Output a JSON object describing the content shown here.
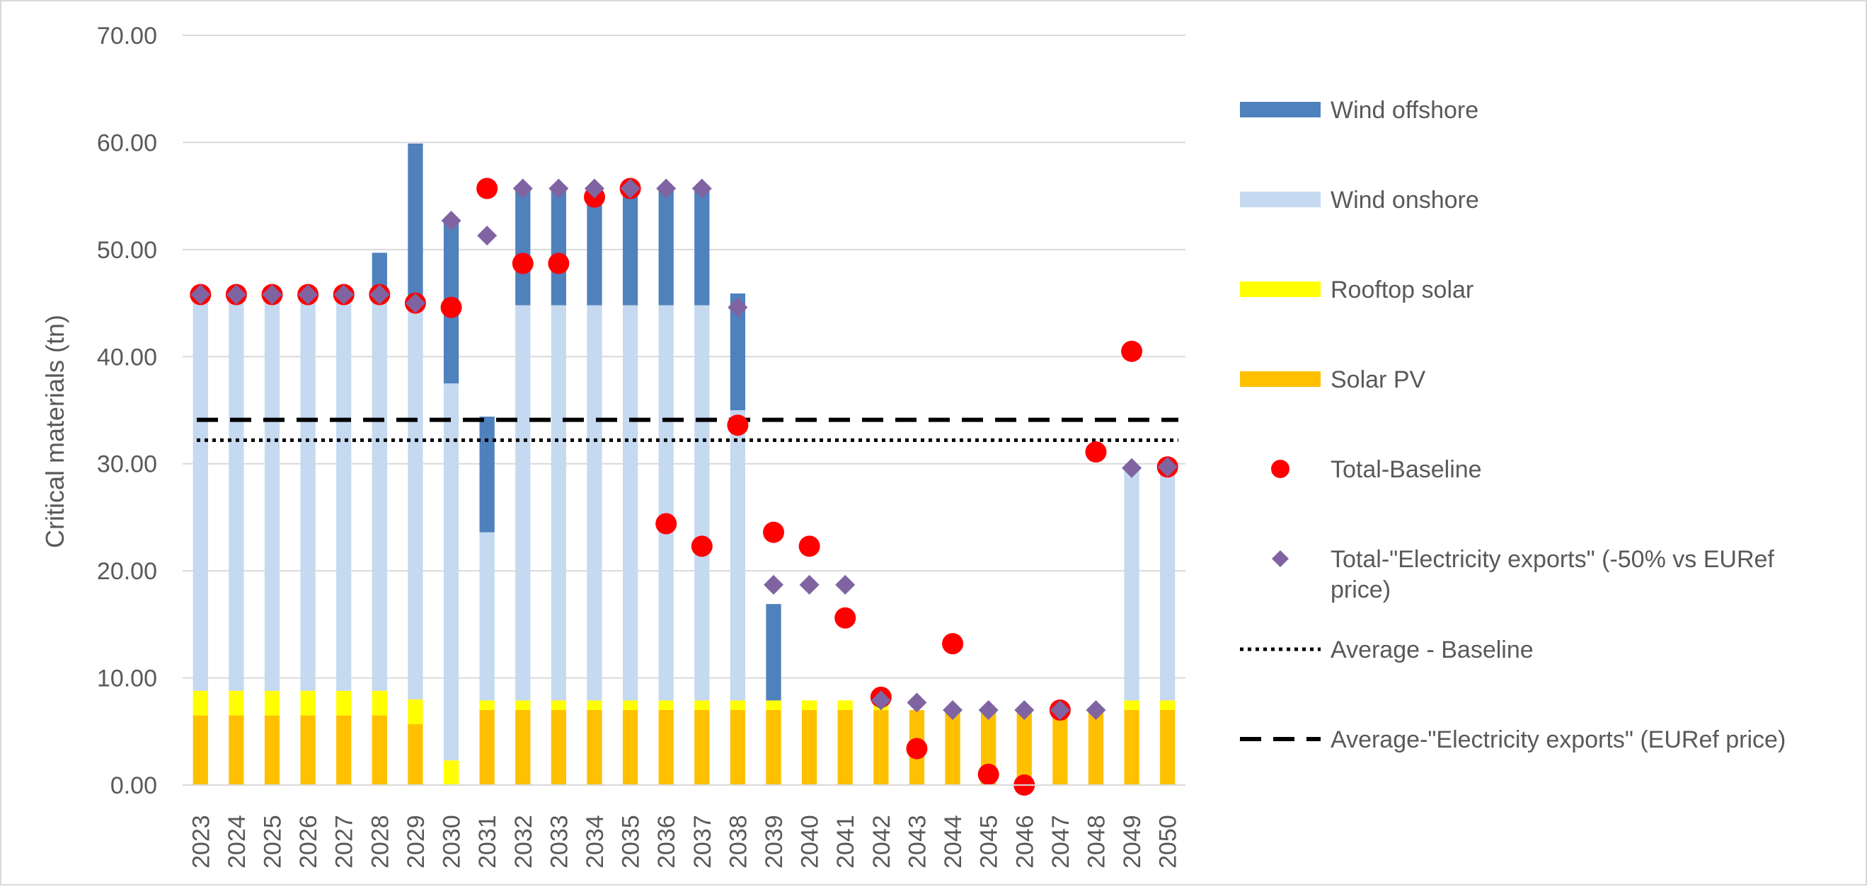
{
  "chart_data": {
    "type": "bar",
    "stacked": true,
    "ylabel": "Critical materials (tn)",
    "ylim": [
      0,
      70
    ],
    "yticks": [
      "0.00",
      "10.00",
      "20.00",
      "30.00",
      "40.00",
      "50.00",
      "60.00",
      "70.00"
    ],
    "grid": true,
    "legend_position": "right",
    "categories": [
      "2023",
      "2024",
      "2025",
      "2026",
      "2027",
      "2028",
      "2029",
      "2030",
      "2031",
      "2032",
      "2033",
      "2034",
      "2035",
      "2036",
      "2037",
      "2038",
      "2039",
      "2040",
      "2041",
      "2042",
      "2043",
      "2044",
      "2045",
      "2046",
      "2047",
      "2048",
      "2049",
      "2050"
    ],
    "series": [
      {
        "name": "Solar PV",
        "color": "#ffc000",
        "values": [
          6.5,
          6.5,
          6.5,
          6.5,
          6.5,
          6.5,
          5.7,
          0,
          7.0,
          7.0,
          7.0,
          7.0,
          7.0,
          7.0,
          7.0,
          7.0,
          7.0,
          7.0,
          7.0,
          7.0,
          7.0,
          7.0,
          7.0,
          7.0,
          7.0,
          7.0,
          7.0,
          7.0
        ]
      },
      {
        "name": "Rooftop solar",
        "color": "#ffff00",
        "values": [
          2.3,
          2.3,
          2.3,
          2.3,
          2.3,
          2.3,
          2.3,
          2.3,
          0.9,
          0.9,
          0.9,
          0.9,
          0.9,
          0.9,
          0.9,
          0.9,
          0.9,
          0.9,
          0.9,
          0.9,
          0,
          0,
          0,
          0,
          0,
          0,
          0.9,
          0.9
        ]
      },
      {
        "name": "Wind onshore",
        "color": "#c5d9f1",
        "values": [
          37.0,
          37.0,
          37.0,
          37.0,
          37.0,
          37.0,
          37.0,
          35.2,
          15.7,
          36.9,
          36.9,
          36.9,
          36.9,
          36.9,
          36.9,
          27.1,
          0,
          0,
          0,
          0,
          0,
          0,
          0,
          0,
          0,
          0,
          21.8,
          21.8
        ]
      },
      {
        "name": "Wind offshore",
        "color": "#4f81bd",
        "values": [
          0,
          0,
          0,
          0,
          0,
          3.9,
          14.9,
          15.3,
          10.8,
          10.9,
          10.9,
          10.9,
          10.9,
          10.9,
          10.9,
          10.9,
          9.0,
          0,
          0,
          0,
          0,
          0,
          0,
          0,
          0,
          0,
          0,
          0
        ]
      }
    ],
    "markers": [
      {
        "name": "Total-Baseline",
        "shape": "circle",
        "color": "#ff0000",
        "values": [
          45.8,
          45.8,
          45.8,
          45.8,
          45.8,
          45.8,
          45.0,
          44.6,
          55.7,
          48.7,
          48.7,
          54.9,
          55.7,
          24.4,
          22.3,
          33.6,
          23.6,
          22.3,
          15.6,
          8.2,
          3.4,
          13.2,
          1.0,
          0,
          7.0,
          31.1,
          40.5,
          29.7
        ]
      },
      {
        "name": "Total-\"Electricity exports\" (-50% vs EURef price)",
        "shape": "diamond",
        "color": "#8064a2",
        "values": [
          45.8,
          45.8,
          45.8,
          45.8,
          45.8,
          45.8,
          45.0,
          52.7,
          51.3,
          55.7,
          55.7,
          55.7,
          55.7,
          55.7,
          55.7,
          44.6,
          18.7,
          18.7,
          18.7,
          7.9,
          7.7,
          7.0,
          7.0,
          7.0,
          7.0,
          7.0,
          29.6,
          29.7
        ]
      }
    ],
    "reference_lines": [
      {
        "name": "Average - Baseline",
        "style": "dotted",
        "color": "#000000",
        "value": 32.2
      },
      {
        "name": "Average-\"Electricity exports\" (EURef price)",
        "style": "dashed",
        "color": "#000000",
        "value": 34.1
      }
    ],
    "legend": [
      {
        "label": "Wind offshore",
        "kind": "bar",
        "color": "#4f81bd"
      },
      {
        "label": "Wind onshore",
        "kind": "bar",
        "color": "#c5d9f1"
      },
      {
        "label": "Rooftop solar",
        "kind": "bar",
        "color": "#ffff00"
      },
      {
        "label": "Solar PV",
        "kind": "bar",
        "color": "#ffc000"
      },
      {
        "label": "Total-Baseline",
        "kind": "circle",
        "color": "#ff0000"
      },
      {
        "label": "Total-\"Electricity exports\" (-50% vs EURef",
        "label2": "price)",
        "kind": "diamond",
        "color": "#8064a2"
      },
      {
        "label": "Average - Baseline",
        "kind": "dotted",
        "color": "#000000"
      },
      {
        "label": "Average-\"Electricity exports\" (EURef price)",
        "kind": "dashed",
        "color": "#000000"
      }
    ]
  }
}
